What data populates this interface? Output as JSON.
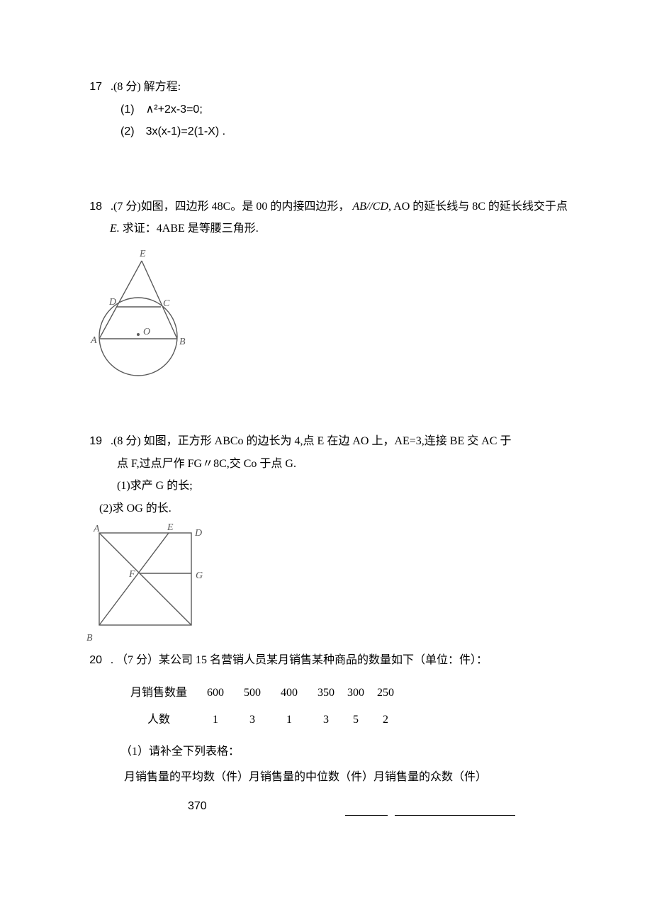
{
  "q17": {
    "num": "17",
    "points": ".(8 分) 解方程:",
    "sub1_label": "(1)",
    "sub1_eq": "∧²+2x-3=0;",
    "sub2_label": "(2)",
    "sub2_eq": "3x(x-1)=2(1-X) ."
  },
  "q18": {
    "num": "18",
    "line1_a": ".(7 分)如图，四边形 48C。是 00 的内接四边形，",
    "line1_b": "AB//CD,",
    "line1_c": " AO 的延长线与 8C 的延长线交于点",
    "line2_a": "E.",
    "line2_b": " 求证：4ABE 是等腰三角形.",
    "figure": {
      "stroke": "#5a5a5a",
      "fill": "#ffffff",
      "labels": {
        "A": "A",
        "B": "B",
        "C": "C",
        "D": "D",
        "E": "E",
        "O": "O"
      },
      "label_font": "italic 14px 'Times New Roman', serif"
    }
  },
  "q19": {
    "num": "19",
    "line1": ".(8 分) 如图，正方形 ABCo 的边长为 4,点 E 在边 AO 上，AE=3,连接 BE 交 AC 于",
    "line2": "点 F,过点尸作 FG〃8C,交 Co 于点 G.",
    "sub1": "(1)求产 G 的长;",
    "sub2": "(2)求 OG 的长.",
    "figure": {
      "stroke": "#5a5a5a",
      "fill": "#ffffff",
      "labels": {
        "A": "A",
        "B": "B",
        "D": "D",
        "E": "E",
        "F": "F",
        "G": "G"
      },
      "label_font": "italic 14px 'Times New Roman', serif"
    }
  },
  "q20": {
    "num": "20",
    "line1": ". （7 分）某公司 15 名营销人员某月销售某种商品的数量如下（单位：件）：",
    "table1": {
      "r1_label": "月销售数量",
      "r1": [
        "600",
        "500",
        "400",
        "350",
        "300",
        "250"
      ],
      "r2_label": "人数",
      "r2": [
        "1",
        "3",
        "1",
        "3",
        "5",
        "2"
      ]
    },
    "sub1": "（1）请补全下列表格：",
    "stats_h1": "月销售量的平均数（件）",
    "stats_h2": "月销售量的中位数（件）",
    "stats_h3": "月销售量的众数（件）",
    "given_avg": "370",
    "blank2_width": 60,
    "blank3_width": 170
  }
}
